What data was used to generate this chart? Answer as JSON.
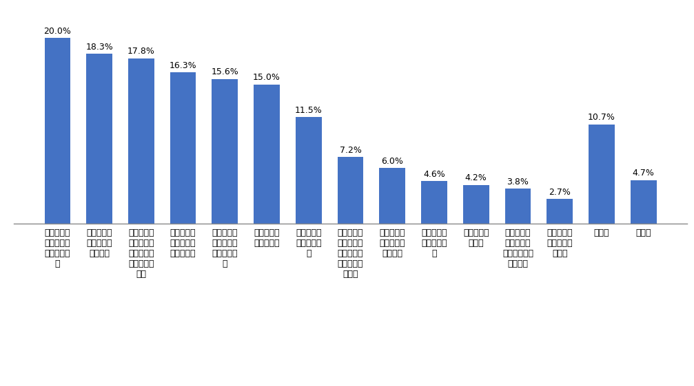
{
  "values": [
    20.0,
    18.3,
    17.8,
    16.3,
    15.6,
    15.0,
    11.5,
    7.2,
    6.0,
    4.6,
    4.2,
    3.8,
    2.7,
    10.7,
    4.7
  ],
  "labels": [
    "職場の人間\n関係に問題\nがあったた\nめ",
    "結婚・出産\n・妊娠・育\n児のため",
    "法人や施設\n・事業所の\nあり方に不\n満があった\nため",
    "他に良い仕\n事・職場が\nあったため",
    "自分の将来\nの見込みが\n立たなかっ\nた",
    "収入が少な\nかったため",
    "新しい資格\nを取ったか\nら",
    "人員整理・\n劧奖退職・\n法人解散・\n事業不振等\nのため",
    "自分に向か\nない仕事だ\nったため",
    "家族の介護\n・看護のた\nめ",
    "病気・高齢\nのため",
    "家族の転職\n・転勤、又\nは事業所の移\n転のため",
    "定年・雇用\n契約の満了\nのため",
    "その他",
    "無回答"
  ],
  "bar_color": "#4472C4",
  "ylim": [
    0,
    22
  ],
  "label_fontsize": 9,
  "value_fontsize": 9,
  "background_color": "#FFFFFF",
  "figure_width": 10.07,
  "figure_height": 5.61,
  "dpi": 100
}
